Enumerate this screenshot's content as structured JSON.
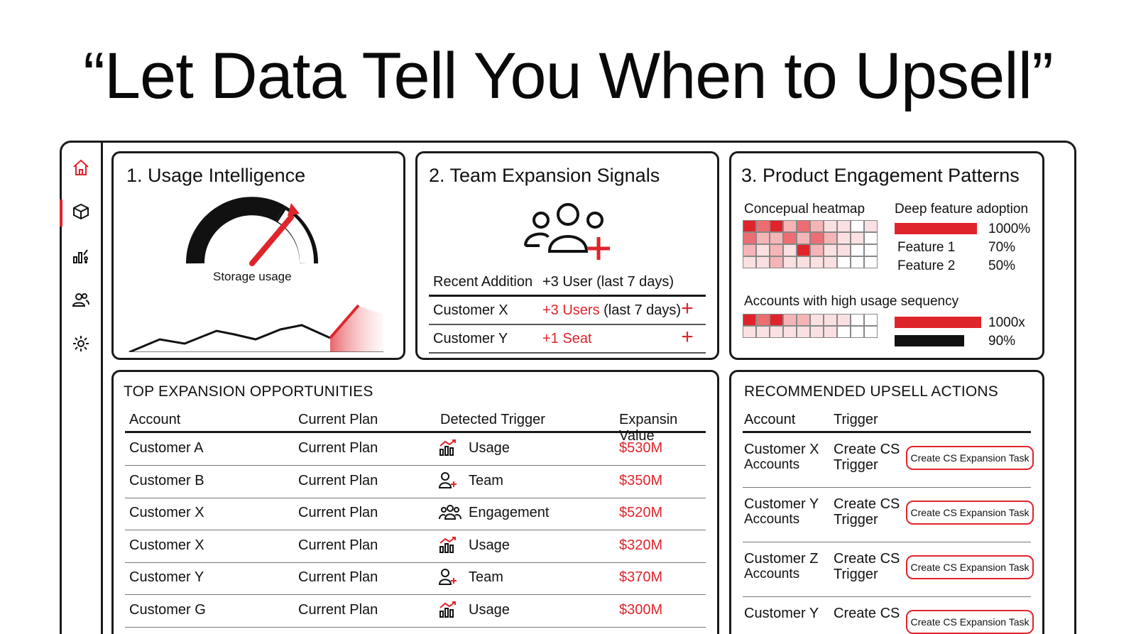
{
  "headline": "“Let Data Tell You When to Upsell”",
  "colors": {
    "accent": "#e0242b",
    "ink": "#111111",
    "frame": "#1a1a1a"
  },
  "nav": {
    "items": [
      {
        "icon": "home-icon"
      },
      {
        "icon": "cube-icon",
        "active": true
      },
      {
        "icon": "analytics-icon"
      },
      {
        "icon": "users-icon"
      },
      {
        "icon": "gear-icon"
      }
    ]
  },
  "usage": {
    "title": "1. Usage Intelligence",
    "gauge_label": "Storage usage"
  },
  "team": {
    "title": "2. Team Expansion Signals",
    "header_left": "Recent Addition",
    "header_right": "+3 User (last 7 days)",
    "rows": [
      {
        "name": "Customer X",
        "delta": "+3 Users",
        "suffix": " (last 7 days)"
      },
      {
        "name": "Customer Y",
        "delta": "+1 Seat",
        "suffix": ""
      }
    ],
    "plus_icon": "+"
  },
  "engagement": {
    "title": "3. Product Engagement Patterns",
    "heatmap_label": "Concepual heatmap",
    "adoption_label": "Deep feature adoption",
    "adoption_top_value": "1000%",
    "features": [
      {
        "name": "Feature 1",
        "value": "70%"
      },
      {
        "name": "Feature 2",
        "value": "50%"
      }
    ],
    "sequence_label": "Accounts with high usage sequency",
    "sequence_values": [
      "1000x",
      "90%"
    ]
  },
  "opportunities": {
    "title": "TOP EXPANSION OPPORTUNITIES",
    "columns": [
      "Account",
      "Current Plan",
      "Detected Trigger",
      "Expansin Value"
    ],
    "rows": [
      {
        "account": "Customer A",
        "plan": "Current Plan",
        "trigger": "Usage",
        "icon": "chart-up-icon",
        "value": "$530M"
      },
      {
        "account": "Customer B",
        "plan": "Current Plan",
        "trigger": "Team",
        "icon": "user-plus-icon",
        "value": "$350M"
      },
      {
        "account": "Customer X",
        "plan": "Current Plan",
        "trigger": "Engagement",
        "icon": "group-icon",
        "value": "$520M"
      },
      {
        "account": "Customer X",
        "plan": "Current Plan",
        "trigger": "Usage",
        "icon": "chart-up-icon",
        "value": "$320M"
      },
      {
        "account": "Customer Y",
        "plan": "Current Plan",
        "trigger": "Team",
        "icon": "user-plus-icon",
        "value": "$370M"
      },
      {
        "account": "Customer G",
        "plan": "Current Plan",
        "trigger": "Usage",
        "icon": "chart-up-icon",
        "value": "$300M"
      }
    ]
  },
  "actions": {
    "title": "RECOMMENDED UPSELL ACTIONS",
    "columns": [
      "Account",
      "Trigger"
    ],
    "rows": [
      {
        "account_1": "Customer X",
        "account_2": "Accounts",
        "trigger_1": "Create CS",
        "trigger_2": "Trigger",
        "button": "Create CS Expansion Task"
      },
      {
        "account_1": "Customer Y",
        "account_2": "Accounts",
        "trigger_1": "Create CS",
        "trigger_2": "Trigger",
        "button": "Create CS Expansion Task"
      },
      {
        "account_1": "Customer Z",
        "account_2": "Accounts",
        "trigger_1": "Create CS",
        "trigger_2": "Trigger",
        "button": "Create CS Expansion Task"
      },
      {
        "account_1": "Customer Y",
        "account_2": "",
        "trigger_1": "Create CS",
        "trigger_2": "",
        "button": "Create CS Expansion Task"
      }
    ]
  }
}
